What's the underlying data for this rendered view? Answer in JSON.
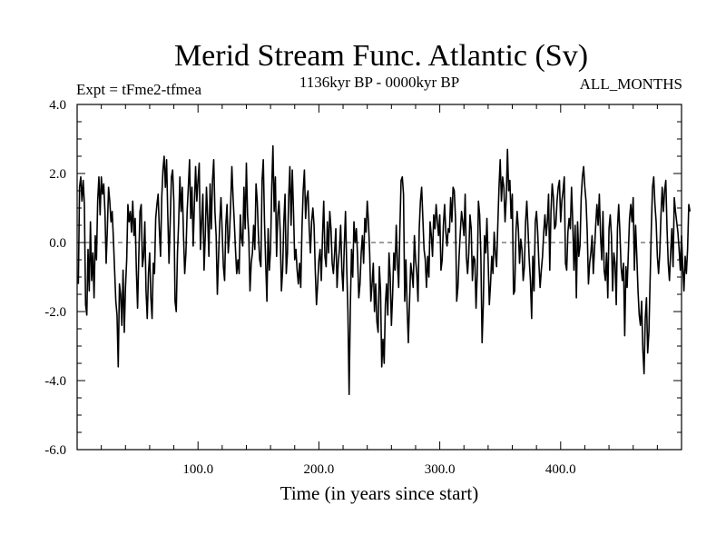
{
  "chart_data": {
    "type": "line",
    "title": "Merid Stream Func. Atlantic (Sv)",
    "subtitle_left": "Expt = tFme2-tfmea",
    "subtitle_center": "1136kyr BP - 0000kyr BP",
    "subtitle_right": "ALL_MONTHS",
    "xlabel": "Time (in years since start)",
    "ylabel": "",
    "xlim": [
      0,
      500
    ],
    "ylim": [
      -6.0,
      4.0
    ],
    "xticks": [
      {
        "value": 100,
        "label": "100.0"
      },
      {
        "value": 200,
        "label": "200.0"
      },
      {
        "value": 300,
        "label": "300.0"
      },
      {
        "value": 400,
        "label": "400.0"
      }
    ],
    "yticks": [
      {
        "value": 4,
        "label": "4.0"
      },
      {
        "value": 2,
        "label": "2.0"
      },
      {
        "value": 0,
        "label": "0.0"
      },
      {
        "value": -2,
        "label": "-2.0"
      },
      {
        "value": -4,
        "label": "-4.0"
      },
      {
        "value": -6,
        "label": "-6.0"
      }
    ],
    "zero_line": true,
    "series": [
      {
        "name": "Merid Stream Func. Atlantic",
        "x_start": 1,
        "x_step": 1,
        "values": [
          -1.2,
          1.6,
          1.9,
          1.2,
          1.8,
          1.1,
          -1.8,
          -2.1,
          -0.2,
          -1.4,
          0.6,
          -1.1,
          -0.3,
          -1.6,
          0.2,
          -0.5,
          1.2,
          1.9,
          0.8,
          1.9,
          1.4,
          1.7,
          0.9,
          -0.6,
          0.4,
          1.6,
          1.2,
          0.6,
          0.9,
          0.1,
          -0.8,
          -1.7,
          -2.1,
          -3.6,
          -1.2,
          -1.5,
          -2.4,
          -0.8,
          -2.6,
          -1.3,
          -0.5,
          1.1,
          0.6,
          0.9,
          0.3,
          1.2,
          0.2,
          0.7,
          -0.8,
          -1.9,
          -0.4,
          0.9,
          1.1,
          -0.7,
          -0.4,
          0.6,
          -1.4,
          -2.2,
          -0.9,
          -0.3,
          -1.6,
          -2.2,
          -0.6,
          -0.9,
          0.7,
          1.1,
          1.4,
          0.4,
          -0.4,
          1.3,
          2.1,
          2.5,
          1.6,
          2.4,
          0.8,
          -0.6,
          0.6,
          1.9,
          2.1,
          1.2,
          -1.7,
          -2.0,
          -0.3,
          0.6,
          1.9,
          0.9,
          1.6,
          0.2,
          -0.9,
          -0.3,
          0.9,
          1.6,
          2.4,
          0.7,
          1.6,
          -0.1,
          1.1,
          2.2,
          1.2,
          1.8,
          2.3,
          -0.2,
          0.6,
          1.4,
          -0.8,
          0.2,
          1.6,
          0.7,
          -0.4,
          1.7,
          0.4,
          1.8,
          2.4,
          0.9,
          0.2,
          -1.5,
          -0.4,
          0.6,
          1.3,
          0.3,
          -0.7,
          -1.1,
          0.5,
          1.1,
          -0.3,
          0.2,
          1.1,
          2.2,
          1.3,
          0.6,
          -0.2,
          -0.9,
          -0.5,
          -0.9,
          0.8,
          0.1,
          -0.1,
          1.6,
          0.4,
          2.3,
          0.8,
          0.2,
          -1.4,
          -0.6,
          -0.3,
          0.5,
          -0.2,
          1.7,
          1.2,
          0.2,
          -0.5,
          -0.7,
          1.8,
          2.4,
          0.6,
          -0.6,
          -1.7,
          0.4,
          -0.8,
          -0.2,
          1.6,
          2.8,
          0.9,
          1.9,
          -0.4,
          0.8,
          1.2,
          0.3,
          -1.4,
          -0.8,
          0.6,
          1.4,
          -0.9,
          -0.3,
          1.3,
          2.2,
          0.5,
          2.1,
          0.9,
          -0.5,
          -0.2,
          -0.8,
          -1.2,
          -0.6,
          -1.3,
          0.4,
          1.5,
          2.1,
          0.7,
          1.3,
          1.5,
          0.4,
          -0.3,
          0.6,
          1.0,
          0.5,
          -0.8,
          -1.8,
          -1.2,
          -0.5,
          -0.2,
          -1.1,
          0.2,
          1.2,
          -0.4,
          -0.7,
          0.6,
          -0.3,
          0.9,
          0.4,
          -0.6,
          -0.9,
          -0.3,
          0.4,
          -1.3,
          -0.6,
          -0.2,
          0.5,
          -0.8,
          -1.4,
          -0.1,
          0.9,
          -0.7,
          -2.0,
          -4.4,
          -1.9,
          -0.2,
          -1.0,
          0.6,
          0.0,
          0.4,
          -0.4,
          -1.6,
          -1.2,
          -0.3,
          0.2,
          -0.6,
          0.7,
          0.3,
          1.2,
          0.6,
          -0.3,
          -1.7,
          -1.2,
          -0.6,
          -2.0,
          -1.2,
          -2.3,
          -2.6,
          -0.7,
          -1.4,
          -3.6,
          -2.8,
          -3.5,
          -1.8,
          -1.2,
          -2.1,
          -0.3,
          -1.0,
          -2.4,
          -1.5,
          -0.3,
          -0.8,
          0.5,
          -0.6,
          -1.3,
          0.4,
          1.8,
          1.9,
          1.4,
          -1.7,
          -0.5,
          -1.9,
          -2.9,
          -1.7,
          -0.6,
          -0.9,
          -1.3,
          0.2,
          -0.5,
          -0.9,
          -1.7,
          0.4,
          1.2,
          1.6,
          0.7,
          -0.2,
          -0.5,
          -1.3,
          -0.4,
          -1.0,
          0.6,
          0.2,
          -0.4,
          0.8,
          0.4,
          1.1,
          0.6,
          0.2,
          0.8,
          -0.8,
          -0.5,
          0.5,
          1.1,
          0.3,
          -0.1,
          0.4,
          0.3,
          1.3,
          0.6,
          1.6,
          1.5,
          0.7,
          -1.7,
          -1.3,
          -0.4,
          0.3,
          0.9,
          0.6,
          0.2,
          1.4,
          -0.4,
          -0.9,
          -0.3,
          0.8,
          0.4,
          -1.1,
          -0.4,
          -0.5,
          -1.9,
          -0.9,
          1.2,
          0.8,
          -0.4,
          -2.9,
          -1.8,
          0.2,
          -0.3,
          0.7,
          -0.5,
          -1.8,
          -1.2,
          -0.4,
          -0.9,
          0.3,
          -0.3,
          -0.7,
          0.5,
          1.6,
          2.4,
          1.2,
          1.9,
          1.6,
          0.6,
          1.3,
          2.7,
          1.5,
          1.8,
          0.7,
          1.4,
          -1.5,
          -1.4,
          0.3,
          0.9,
          0.4,
          -0.6,
          0.1,
          -0.2,
          -1.1,
          -0.7,
          0.6,
          1.2,
          0.4,
          -0.5,
          -1.1,
          -2.2,
          -0.4,
          -1.4,
          0.6,
          0.9,
          0.3,
          -0.6,
          -1.3,
          -0.8,
          -0.4,
          0.3,
          0.8,
          0.2,
          0.6,
          1.4,
          -0.8,
          0.9,
          1.7,
          1.3,
          0.4,
          0.5,
          1.2,
          1.6,
          1.8,
          0.6,
          1.2,
          1.5,
          1.9,
          -0.6,
          -0.8,
          0.3,
          0.7,
          0.4,
          1.6,
          0.6,
          -0.8,
          0.5,
          -1.6,
          0.6,
          -0.4,
          -0.1,
          1.3,
          1.9,
          2.2,
          1.6,
          1.2,
          0.3,
          -1.2,
          -0.6,
          -0.3,
          0.2,
          -0.9,
          -0.2,
          0.5,
          1.1,
          0.5,
          1.4,
          0.2,
          -0.5,
          0.9,
          -0.8,
          -1.1,
          -0.3,
          -1.6,
          0.4,
          0.8,
          0.2,
          -1.4,
          -0.3,
          -0.6,
          -1.8,
          0.4,
          1.1,
          0.3,
          -0.7,
          -1.1,
          -0.6,
          -2.7,
          -0.7,
          -1.3,
          -0.3,
          0.7,
          1.1,
          0.6,
          1.3,
          -0.8,
          0.5,
          -0.4,
          -1.4,
          -2.1,
          -2.4,
          -1.7,
          -3.1,
          -3.8,
          -2.2,
          -1.6,
          -3.2,
          -2.6,
          -1.1,
          0.4,
          1.6,
          1.9,
          1.1,
          0.6,
          -0.4,
          -0.9,
          -0.3,
          0.8,
          1.6,
          0.9,
          1.5,
          1.8,
          0.4,
          -0.6,
          -1.1,
          -0.3,
          0.4,
          -0.7,
          1.3,
          0.9,
          0.6,
          0.3,
          -0.2,
          -0.8,
          0.2,
          -0.7,
          -1.4,
          -0.4,
          -0.9,
          -0.2,
          1.1,
          0.9
        ]
      }
    ]
  }
}
